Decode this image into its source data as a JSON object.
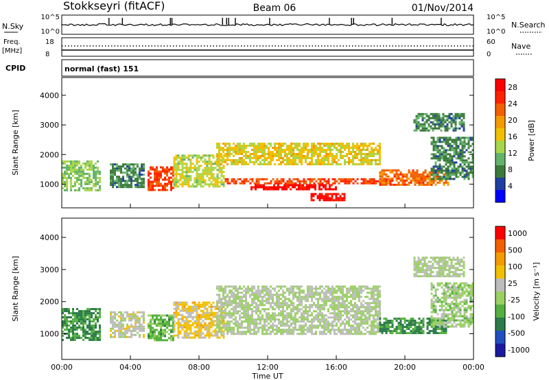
{
  "header": {
    "station": "Stokkseyri (fitACF)",
    "beam": "Beam 06",
    "date": "01/Nov/2014"
  },
  "noise_panel": {
    "left_label": "N.Sky",
    "left_ticks": [
      "10^5",
      "10^0"
    ],
    "right_label": "N.Search",
    "right_ticks": [
      "10^5",
      "10^0"
    ]
  },
  "freq_panel": {
    "left_label_1": "Freq.",
    "left_label_2": "[MHz]",
    "left_ticks": [
      "18",
      "8"
    ],
    "right_label": "Nave",
    "right_ticks": [
      "60",
      "0"
    ]
  },
  "cpid_panel": {
    "label": "CPID",
    "program": "normal (fast) 151"
  },
  "colors": {
    "power_scale": [
      "#0000ff",
      "#1f3fa0",
      "#3c7a3c",
      "#63b36b",
      "#a8d64a",
      "#f2c000",
      "#f59a00",
      "#f26000",
      "#ff2200",
      "#ff0000"
    ],
    "velocity_scale": [
      "#1a1aa0",
      "#1f4fbf",
      "#2a7a4a",
      "#55b040",
      "#9bd064",
      "#bdbdbd",
      "#f2c000",
      "#f59a00",
      "#f26000",
      "#ff0000"
    ]
  },
  "chart_data": [
    {
      "type": "heatmap",
      "title": "Power",
      "xlabel": "",
      "ylabel": "Slant Range [km]",
      "x_ticks": [
        "00:00",
        "04:00",
        "08:00",
        "12:00",
        "16:00",
        "20:00",
        "00:00"
      ],
      "y_ticks": [
        "1000",
        "2000",
        "3000",
        "4000"
      ],
      "ylim": [
        200,
        4600
      ],
      "colorbar": {
        "label": "Power [dB]",
        "ticks": [
          "4",
          "8",
          "12",
          "16",
          "20",
          "24",
          "28"
        ],
        "range": [
          0,
          30
        ]
      },
      "bands": [
        {
          "t_start": 0.0,
          "t_end": 2.2,
          "range_low": 800,
          "range_high": 1800,
          "level": 12
        },
        {
          "t_start": 2.8,
          "t_end": 4.8,
          "range_low": 900,
          "range_high": 1700,
          "level": 8
        },
        {
          "t_start": 5.0,
          "t_end": 6.5,
          "range_low": 800,
          "range_high": 1600,
          "level": 24
        },
        {
          "t_start": 6.5,
          "t_end": 9.5,
          "range_low": 900,
          "range_high": 2000,
          "level": 14
        },
        {
          "t_start": 9.0,
          "t_end": 18.5,
          "range_low": 1700,
          "range_high": 2400,
          "level": 16
        },
        {
          "t_start": 9.5,
          "t_end": 19.0,
          "range_low": 1000,
          "range_high": 1200,
          "level": 24
        },
        {
          "t_start": 11.0,
          "t_end": 16.0,
          "range_low": 850,
          "range_high": 1000,
          "level": 28
        },
        {
          "t_start": 14.5,
          "t_end": 16.5,
          "range_low": 450,
          "range_high": 700,
          "level": 28
        },
        {
          "t_start": 18.5,
          "t_end": 22.5,
          "range_low": 1000,
          "range_high": 1500,
          "level": 22
        },
        {
          "t_start": 21.5,
          "t_end": 24.0,
          "range_low": 1200,
          "range_high": 2600,
          "level": 8
        },
        {
          "t_start": 20.5,
          "t_end": 23.5,
          "range_low": 2800,
          "range_high": 3400,
          "level": 8
        }
      ]
    },
    {
      "type": "heatmap",
      "title": "Velocity",
      "xlabel": "Time UT",
      "ylabel": "Slant Range [km]",
      "x_ticks": [
        "00:00",
        "04:00",
        "08:00",
        "12:00",
        "16:00",
        "20:00",
        "00:00"
      ],
      "y_ticks": [
        "1000",
        "2000",
        "3000",
        "4000"
      ],
      "ylim": [
        200,
        4600
      ],
      "colorbar": {
        "label": "Velocity [m s⁻¹]",
        "ticks": [
          "1000",
          "500",
          "100",
          "25",
          "-25",
          "-100",
          "-500",
          "-1000"
        ],
        "range": [
          -1200,
          1200
        ]
      },
      "bands": [
        {
          "t_start": 0.0,
          "t_end": 2.2,
          "range_low": 800,
          "range_high": 1800,
          "level": -500
        },
        {
          "t_start": 2.8,
          "t_end": 4.8,
          "range_low": 900,
          "range_high": 1700,
          "level": 100
        },
        {
          "t_start": 5.0,
          "t_end": 6.5,
          "range_low": 800,
          "range_high": 1600,
          "level": -300
        },
        {
          "t_start": 6.5,
          "t_end": 9.5,
          "range_low": 900,
          "range_high": 2000,
          "level": 300
        },
        {
          "t_start": 9.0,
          "t_end": 18.5,
          "range_low": 1000,
          "range_high": 2500,
          "level": 0
        },
        {
          "t_start": 18.5,
          "t_end": 22.5,
          "range_low": 1000,
          "range_high": 1500,
          "level": -500
        },
        {
          "t_start": 21.5,
          "t_end": 24.0,
          "range_low": 1200,
          "range_high": 2600,
          "level": -100
        },
        {
          "t_start": 20.5,
          "t_end": 23.5,
          "range_low": 2800,
          "range_high": 3400,
          "level": 0
        }
      ]
    }
  ]
}
